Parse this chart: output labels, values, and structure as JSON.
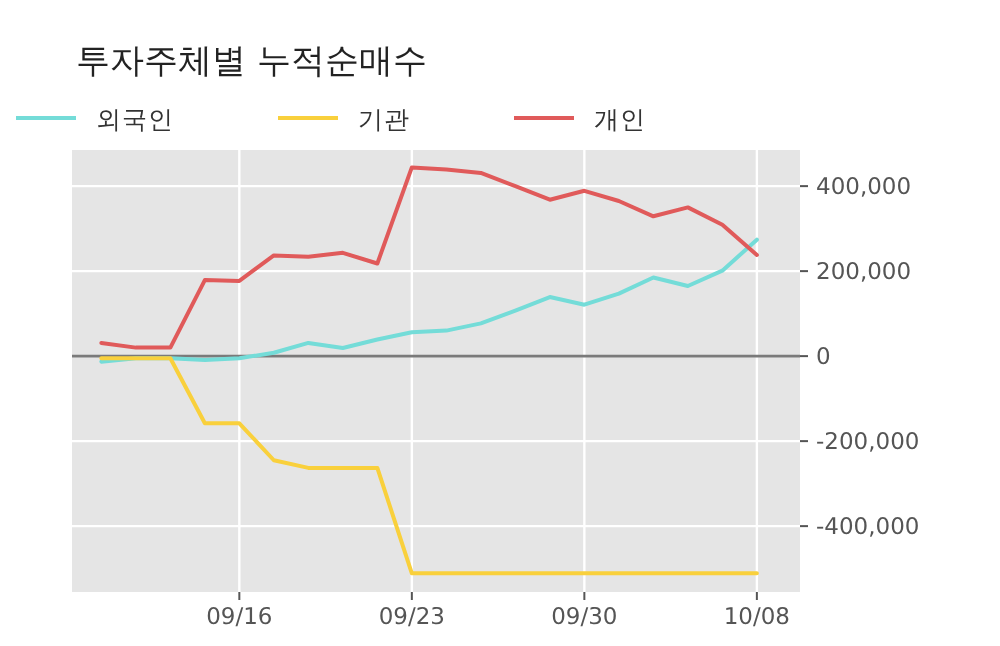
{
  "chart_data": {
    "type": "line",
    "title": "투자주체별 누적순매수",
    "categories": [
      null,
      null,
      null,
      null,
      "09/16",
      null,
      null,
      null,
      null,
      "09/23",
      null,
      null,
      null,
      null,
      "09/30",
      null,
      null,
      null,
      null,
      "10/08"
    ],
    "series": [
      {
        "name": "외국인",
        "color": "#74dcd8",
        "values": [
          -13000,
          -5000,
          -5000,
          -9000,
          -5000,
          8000,
          31000,
          19000,
          39000,
          56000,
          60000,
          77000,
          107000,
          139000,
          121000,
          147000,
          185000,
          165000,
          201000,
          274000
        ]
      },
      {
        "name": "기관",
        "color": "#f9d03c",
        "values": [
          -5000,
          -5000,
          -5000,
          -158000,
          -158000,
          -245000,
          -263000,
          -263000,
          -263000,
          -511000,
          -511000,
          -511000,
          -511000,
          -511000,
          -511000,
          -511000,
          -511000,
          -511000,
          -511000,
          -511000
        ]
      },
      {
        "name": "개인",
        "color": "#e05a5a",
        "values": [
          31000,
          20000,
          20000,
          179000,
          177000,
          237000,
          234000,
          243000,
          218000,
          444000,
          439000,
          431000,
          400000,
          368000,
          389000,
          365000,
          329000,
          350000,
          309000,
          238000
        ]
      }
    ],
    "ylim": [
      -555000,
      485000
    ],
    "yticks": [
      {
        "value": -400000,
        "label": "-400,000"
      },
      {
        "value": -200000,
        "label": "-200,000"
      },
      0,
      {
        "value": 200000,
        "label": "200,000"
      },
      {
        "value": 400000,
        "label": "400,000"
      }
    ],
    "ref_lines": [
      {
        "axis": "y",
        "value": 0,
        "color": "#7a7a7a"
      }
    ],
    "grid": true,
    "legend": "top left"
  }
}
